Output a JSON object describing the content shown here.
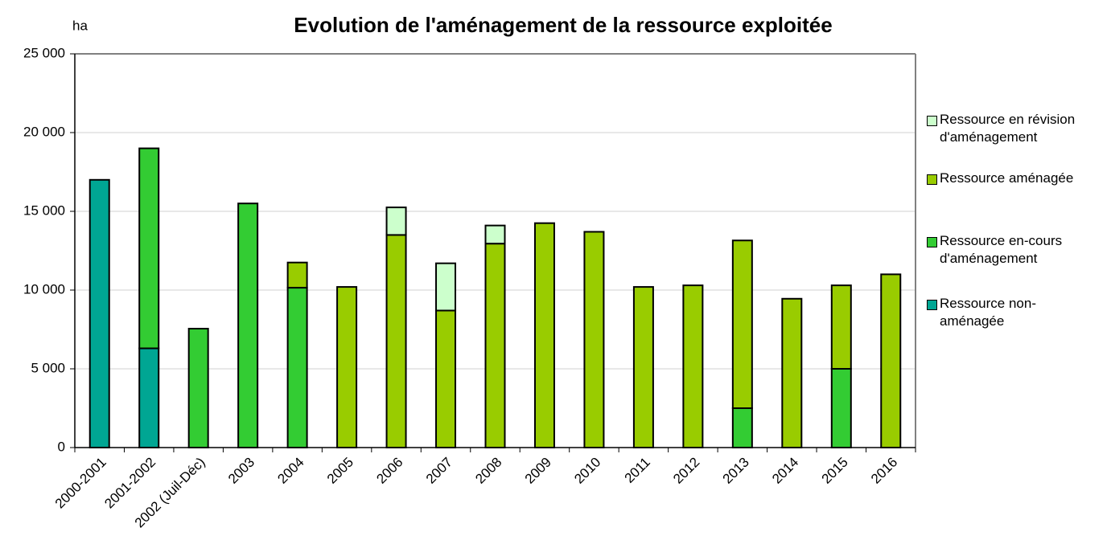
{
  "chart_data": {
    "type": "stacked_bar",
    "title": "Evolution de l'aménagement de la ressource exploitée",
    "y_label": "ha",
    "categories": [
      "2000-2001",
      "2001-2002",
      "2002 (Juil-Déc)",
      "2003",
      "2004",
      "2005",
      "2006",
      "2007",
      "2008",
      "2009",
      "2010",
      "2011",
      "2012",
      "2013",
      "2014",
      "2015",
      "2016"
    ],
    "series": [
      {
        "name": "Ressource non-aménagée",
        "color": "#00a693",
        "values": [
          17000,
          6300,
          0,
          0,
          0,
          0,
          0,
          0,
          0,
          0,
          0,
          0,
          0,
          0,
          0,
          0,
          0
        ]
      },
      {
        "name": "Ressource en-cours d'aménagement",
        "color": "#33cc33",
        "values": [
          0,
          12700,
          7550,
          15500,
          10150,
          0,
          0,
          0,
          0,
          0,
          0,
          0,
          0,
          2500,
          0,
          5000,
          0
        ]
      },
      {
        "name": "Ressource aménagée",
        "color": "#99cc00",
        "values": [
          0,
          0,
          0,
          0,
          1600,
          10200,
          13500,
          8700,
          12950,
          14250,
          13700,
          10200,
          10300,
          10650,
          9450,
          5300,
          11000
        ]
      },
      {
        "name": "Ressource en révision d'aménagement",
        "color": "#ccffcc",
        "values": [
          0,
          0,
          0,
          0,
          0,
          0,
          1750,
          3000,
          1150,
          0,
          0,
          0,
          0,
          0,
          0,
          0,
          0
        ]
      }
    ],
    "ylim": [
      0,
      25000
    ],
    "yticks": [
      0,
      {
        "value": 5000,
        "label": "5 000"
      },
      {
        "value": 10000,
        "label": "10 000"
      },
      {
        "value": 15000,
        "label": "15 000"
      },
      {
        "value": 20000,
        "label": "20 000"
      },
      {
        "value": 25000,
        "label": "25 000"
      }
    ],
    "grid": true,
    "legend": "right"
  }
}
